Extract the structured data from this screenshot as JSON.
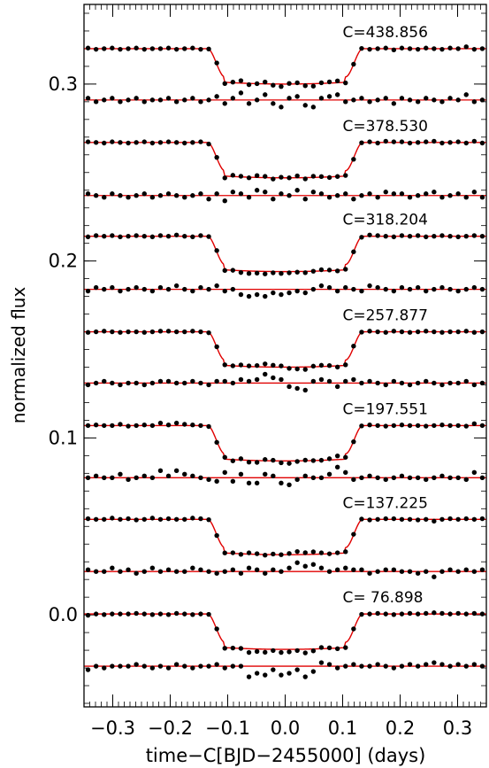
{
  "chart_data": {
    "type": "scatter",
    "title": "",
    "xlabel": "time−C[BJD−2455000] (days)",
    "ylabel": "normalized flux",
    "xlim": [
      -0.35,
      0.35
    ],
    "ylim": [
      -0.052,
      0.345
    ],
    "x_ticks": [
      -0.3,
      -0.2,
      -0.1,
      0.0,
      0.1,
      0.2,
      0.3
    ],
    "x_tick_labels": [
      "−0.3",
      "−0.2",
      "−0.1",
      "0.0",
      "0.1",
      "0.2",
      "0.3"
    ],
    "y_ticks": [
      0.0,
      0.1,
      0.2,
      0.3
    ],
    "y_tick_labels": [
      "0.0",
      "0.1",
      "0.2",
      "0.3"
    ],
    "grid": false,
    "legend": "none",
    "model_color": "#e00000",
    "point_color": "#000000",
    "transit": {
      "depth": 0.02,
      "ingress_start": -0.135,
      "ingress_end": -0.105,
      "egress_start": 0.105,
      "egress_end": 0.135,
      "limb_darkening": 0.4
    },
    "x_samples": [
      -0.343,
      -0.329,
      -0.315,
      -0.301,
      -0.287,
      -0.273,
      -0.259,
      -0.245,
      -0.231,
      -0.217,
      -0.203,
      -0.189,
      -0.175,
      -0.161,
      -0.147,
      -0.133,
      -0.119,
      -0.105,
      -0.091,
      -0.077,
      -0.063,
      -0.049,
      -0.035,
      -0.021,
      -0.007,
      0.007,
      0.021,
      0.035,
      0.049,
      0.063,
      0.077,
      0.091,
      0.105,
      0.119,
      0.133,
      0.147,
      0.161,
      0.175,
      0.189,
      0.203,
      0.217,
      0.231,
      0.245,
      0.259,
      0.273,
      0.287,
      0.301,
      0.315,
      0.329,
      0.343
    ],
    "series": [
      {
        "label": "C=438.856",
        "baseline": 0.32,
        "residual_level": 0.291,
        "residuals": [
          0.001,
          -0.001,
          0.0,
          0.001,
          -0.001,
          0.0,
          0.001,
          -0.001,
          0.0,
          0.0,
          0.001,
          -0.001,
          0.0,
          0.001,
          -0.001,
          0.0,
          0.002,
          -0.002,
          0.001,
          0.004,
          -0.002,
          0.0,
          0.003,
          -0.002,
          -0.004,
          0.001,
          0.002,
          -0.003,
          -0.004,
          0.001,
          0.002,
          0.003,
          -0.001,
          0.0,
          0.001,
          -0.001,
          0.0,
          0.001,
          -0.002,
          0.001,
          0.0,
          -0.001,
          0.001,
          0.0,
          -0.001,
          0.001,
          0.0,
          0.003,
          -0.001,
          0.0
        ]
      },
      {
        "label": "C=378.530",
        "baseline": 0.267,
        "residual_level": 0.237,
        "residuals": [
          0.001,
          0.0,
          -0.001,
          0.001,
          0.0,
          -0.001,
          0.0,
          0.001,
          -0.001,
          0.0,
          0.001,
          0.0,
          -0.001,
          0.0,
          0.001,
          -0.002,
          0.001,
          -0.003,
          0.002,
          0.001,
          -0.001,
          0.003,
          0.002,
          -0.002,
          0.001,
          0.0,
          0.003,
          -0.002,
          0.002,
          0.001,
          -0.001,
          0.0,
          0.001,
          -0.002,
          0.0,
          0.001,
          -0.001,
          0.002,
          0.001,
          0.001,
          -0.001,
          0.0,
          0.001,
          0.002,
          -0.001,
          0.0,
          0.001,
          -0.001,
          0.002,
          -0.001
        ]
      },
      {
        "label": "C=318.204",
        "baseline": 0.214,
        "residual_level": 0.184,
        "residuals": [
          -0.001,
          0.001,
          0.0,
          0.001,
          -0.001,
          0.0,
          0.001,
          0.0,
          -0.001,
          0.001,
          0.0,
          0.002,
          0.0,
          -0.001,
          0.001,
          0.0,
          0.002,
          -0.001,
          0.0,
          -0.003,
          -0.004,
          -0.003,
          -0.004,
          -0.002,
          -0.003,
          -0.002,
          -0.001,
          -0.002,
          0.0,
          0.002,
          0.001,
          -0.001,
          0.001,
          0.0,
          -0.001,
          0.002,
          0.001,
          0.0,
          -0.001,
          0.001,
          0.0,
          0.001,
          -0.001,
          0.0,
          0.001,
          0.0,
          -0.001,
          0.0,
          0.001,
          0.0
        ]
      },
      {
        "label": "C=257.877",
        "baseline": 0.16,
        "residual_level": 0.131,
        "residuals": [
          -0.001,
          0.0,
          0.001,
          0.0,
          -0.001,
          0.0,
          0.0,
          -0.001,
          0.0,
          0.001,
          0.001,
          0.0,
          0.0,
          0.001,
          0.0,
          -0.001,
          0.001,
          0.001,
          0.0,
          0.002,
          0.001,
          0.002,
          0.005,
          0.003,
          0.002,
          -0.002,
          -0.003,
          -0.004,
          0.001,
          0.002,
          0.001,
          -0.002,
          0.001,
          0.002,
          0.0,
          0.001,
          0.0,
          -0.001,
          0.001,
          0.0,
          -0.001,
          0.0,
          0.001,
          0.0,
          -0.001,
          0.0,
          0.0,
          0.001,
          -0.001,
          0.0
        ]
      },
      {
        "label": "C=197.551",
        "baseline": 0.107,
        "residual_level": 0.0775,
        "residuals": [
          0.0,
          0.001,
          0.0,
          0.0,
          0.002,
          -0.001,
          0.0,
          0.001,
          0.0,
          0.004,
          0.001,
          0.004,
          0.002,
          0.001,
          0.0,
          -0.001,
          -0.002,
          0.003,
          -0.002,
          0.002,
          -0.003,
          -0.003,
          0.002,
          0.001,
          -0.003,
          -0.004,
          -0.001,
          0.001,
          0.0,
          0.0,
          0.002,
          0.006,
          0.003,
          -0.001,
          0.0,
          0.001,
          0.0,
          -0.001,
          0.0,
          0.001,
          0.0,
          0.0,
          -0.001,
          0.0,
          0.001,
          0.0,
          0.0,
          -0.001,
          0.003,
          0.0
        ]
      },
      {
        "label": "C=137.225",
        "baseline": 0.054,
        "residual_level": 0.0245,
        "residuals": [
          0.001,
          0.0,
          0.0,
          0.002,
          0.0,
          0.001,
          -0.001,
          0.0,
          0.002,
          0.0,
          0.001,
          0.0,
          0.0,
          0.002,
          0.001,
          0.0,
          -0.001,
          0.0,
          0.001,
          -0.001,
          0.002,
          0.001,
          -0.001,
          0.001,
          0.0,
          0.002,
          0.005,
          0.003,
          0.004,
          0.002,
          0.0,
          0.001,
          0.002,
          0.001,
          0.001,
          -0.001,
          0.0,
          0.001,
          0.001,
          0.0,
          0.0,
          -0.001,
          0.0,
          -0.003,
          0.0,
          0.001,
          0.0,
          0.001,
          0.0,
          0.001
        ]
      },
      {
        "label": "C= 76.898",
        "baseline": 0.0005,
        "residual_level": -0.029,
        "residuals": [
          -0.002,
          0.0,
          -0.001,
          0.0,
          0.0,
          0.0,
          0.001,
          0.0,
          -0.001,
          0.0,
          -0.001,
          0.001,
          0.0,
          -0.001,
          0.0,
          0.0,
          0.001,
          -0.001,
          0.0,
          0.0,
          -0.006,
          -0.004,
          -0.005,
          -0.002,
          -0.005,
          -0.004,
          -0.002,
          -0.006,
          -0.003,
          0.002,
          0.001,
          -0.001,
          0.0,
          0.001,
          0.0,
          0.0,
          0.001,
          0.0,
          -0.001,
          0.0,
          0.001,
          0.0,
          0.001,
          0.002,
          0.001,
          0.0,
          0.001,
          0.0,
          0.001,
          0.0
        ]
      }
    ]
  }
}
